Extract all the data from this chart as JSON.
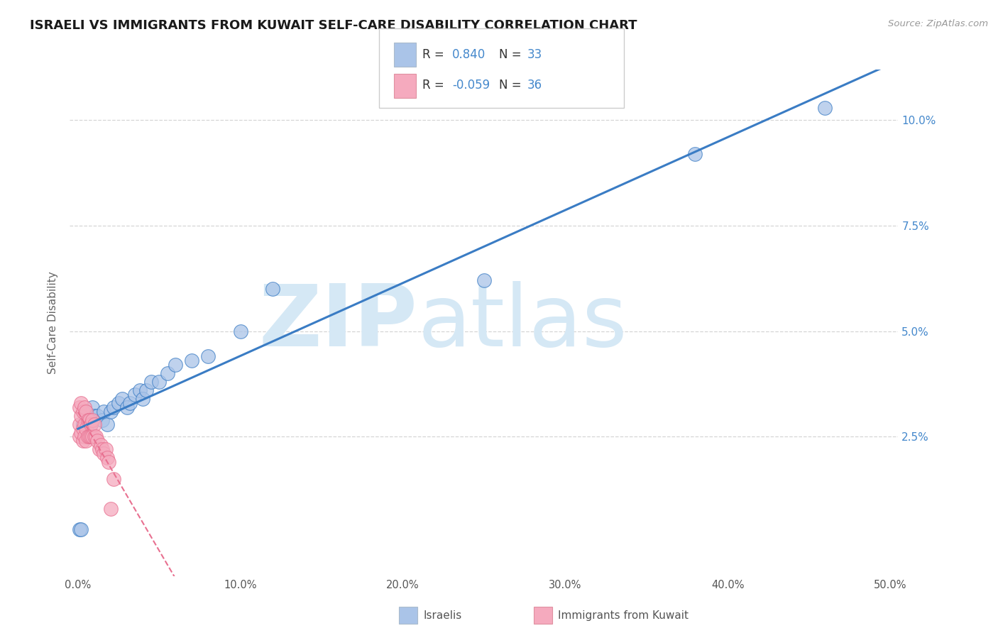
{
  "title": "ISRAELI VS IMMIGRANTS FROM KUWAIT SELF-CARE DISABILITY CORRELATION CHART",
  "source": "Source: ZipAtlas.com",
  "ylabel": "Self-Care Disability",
  "xlim": [
    -0.005,
    0.505
  ],
  "ylim": [
    -0.008,
    0.112
  ],
  "yticks": [
    0.0,
    0.025,
    0.05,
    0.075,
    0.1
  ],
  "ytick_labels": [
    "",
    "2.5%",
    "5.0%",
    "7.5%",
    "10.0%"
  ],
  "xticks": [
    0.0,
    0.1,
    0.2,
    0.3,
    0.4,
    0.5
  ],
  "xtick_labels": [
    "0.0%",
    "10.0%",
    "20.0%",
    "30.0%",
    "40.0%",
    "50.0%"
  ],
  "israeli_R": 0.84,
  "israeli_N": 33,
  "kuwait_R": -0.059,
  "kuwait_N": 36,
  "israeli_color": "#aac4e8",
  "kuwait_color": "#f5aabe",
  "israeli_line_color": "#3a7cc4",
  "kuwait_line_color": "#e87090",
  "watermark_zip": "ZIP",
  "watermark_atlas": "atlas",
  "watermark_color": "#d5e8f5",
  "legend_label_israeli": "Israelis",
  "legend_label_kuwait": "Immigrants from Kuwait",
  "israeli_x": [
    0.001,
    0.002,
    0.003,
    0.005,
    0.007,
    0.008,
    0.009,
    0.01,
    0.012,
    0.015,
    0.016,
    0.018,
    0.02,
    0.022,
    0.025,
    0.027,
    0.03,
    0.032,
    0.035,
    0.038,
    0.04,
    0.042,
    0.045,
    0.05,
    0.055,
    0.06,
    0.07,
    0.08,
    0.1,
    0.12,
    0.25,
    0.38,
    0.46
  ],
  "israeli_y": [
    0.003,
    0.003,
    0.028,
    0.031,
    0.027,
    0.028,
    0.032,
    0.03,
    0.03,
    0.029,
    0.031,
    0.028,
    0.031,
    0.032,
    0.033,
    0.034,
    0.032,
    0.033,
    0.035,
    0.036,
    0.034,
    0.036,
    0.038,
    0.038,
    0.04,
    0.042,
    0.043,
    0.044,
    0.05,
    0.06,
    0.062,
    0.092,
    0.103
  ],
  "kuwait_x": [
    0.001,
    0.001,
    0.001,
    0.002,
    0.002,
    0.002,
    0.003,
    0.003,
    0.003,
    0.004,
    0.004,
    0.004,
    0.005,
    0.005,
    0.005,
    0.006,
    0.006,
    0.007,
    0.007,
    0.008,
    0.008,
    0.009,
    0.009,
    0.01,
    0.01,
    0.011,
    0.012,
    0.013,
    0.014,
    0.015,
    0.016,
    0.017,
    0.018,
    0.019,
    0.02,
    0.022
  ],
  "kuwait_y": [
    0.025,
    0.028,
    0.032,
    0.026,
    0.03,
    0.033,
    0.024,
    0.027,
    0.031,
    0.025,
    0.028,
    0.032,
    0.024,
    0.027,
    0.031,
    0.025,
    0.029,
    0.025,
    0.029,
    0.025,
    0.028,
    0.025,
    0.029,
    0.025,
    0.028,
    0.025,
    0.024,
    0.022,
    0.023,
    0.022,
    0.021,
    0.022,
    0.02,
    0.019,
    0.008,
    0.015
  ],
  "background_color": "#ffffff",
  "grid_color": "#cccccc",
  "legend_text_color": "#4488cc",
  "legend_label_color": "#444444"
}
